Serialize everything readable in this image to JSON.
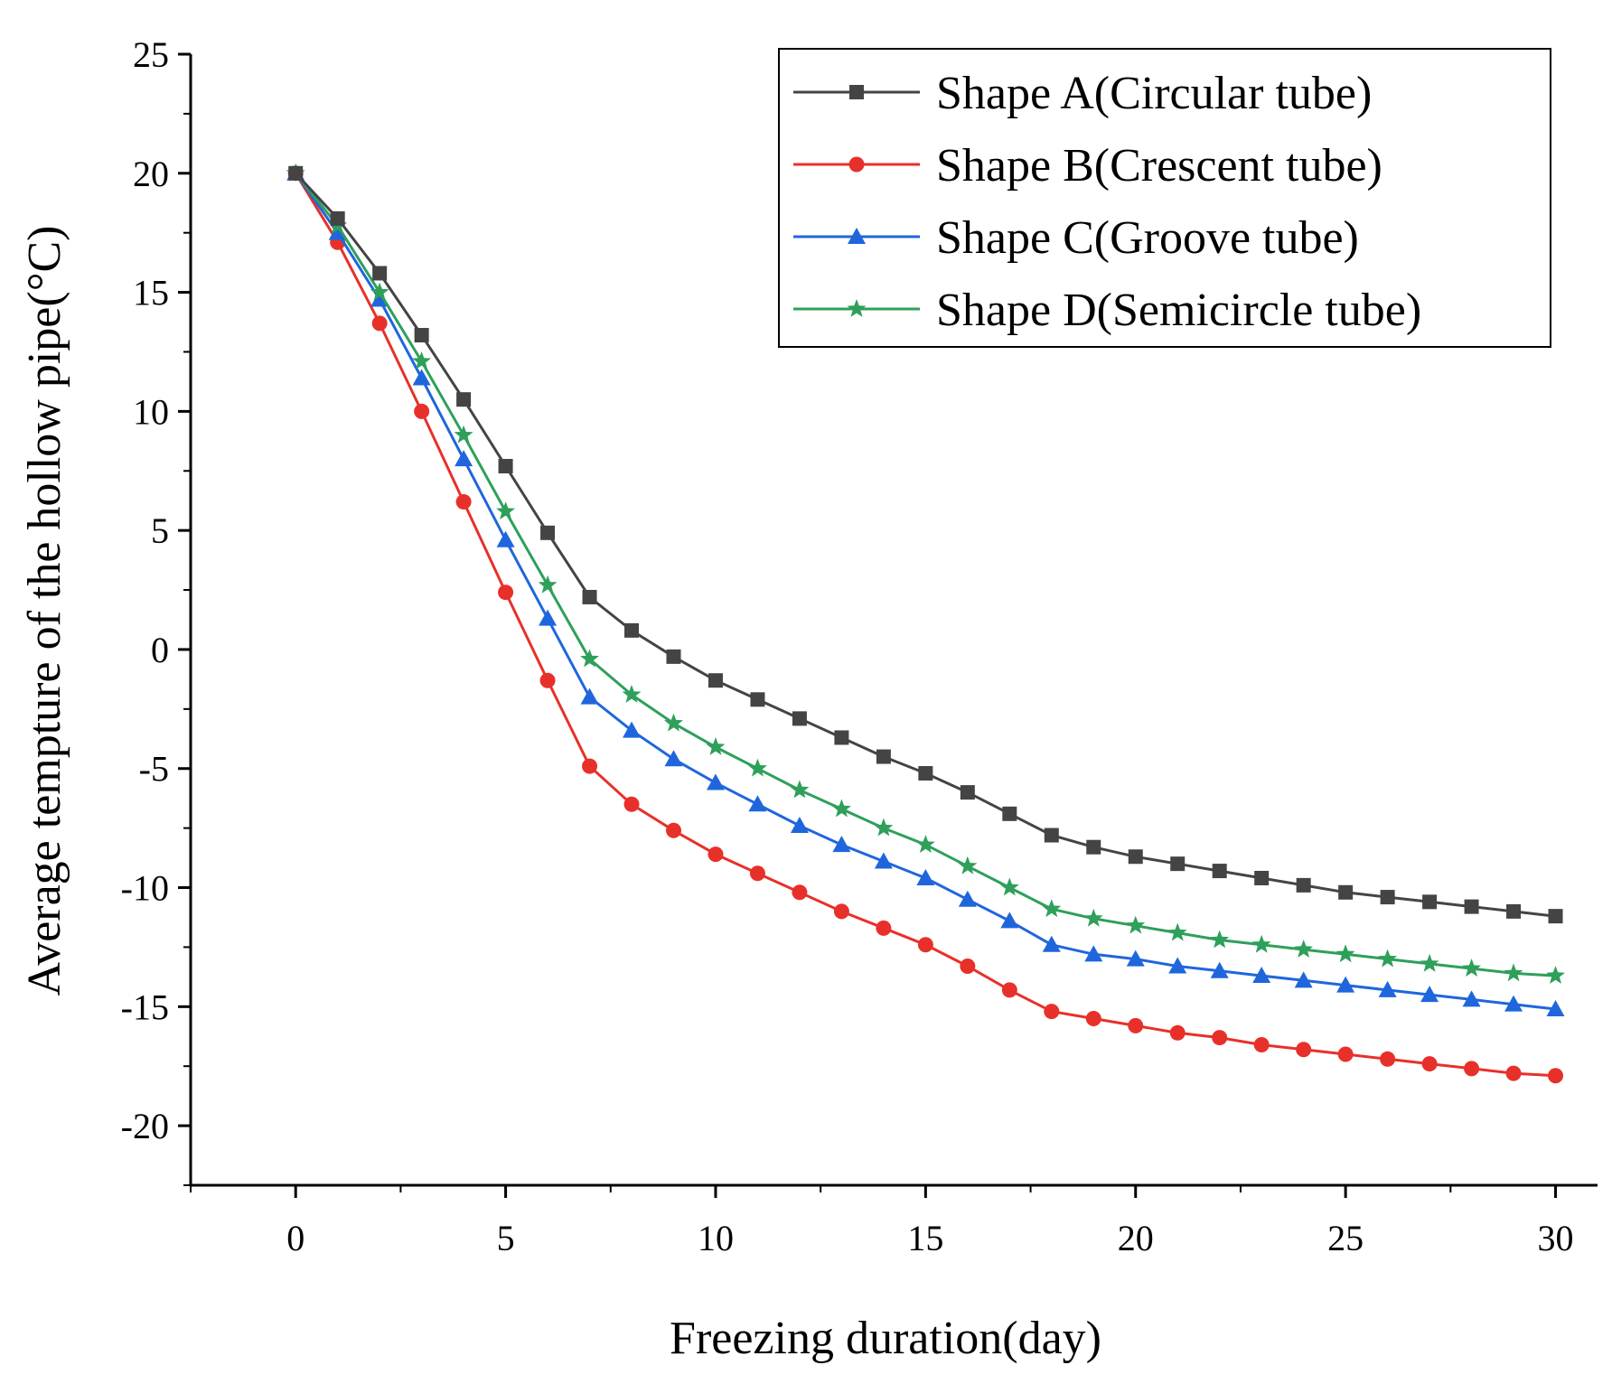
{
  "chart_data": {
    "type": "line",
    "title": "",
    "xlabel": "Freezing duration(day)",
    "ylabel": "Average tempture of the hollow pipe(°C)",
    "xlim": [
      -2.5,
      31
    ],
    "ylim": [
      -22.5,
      25
    ],
    "xticks": [
      0,
      5,
      10,
      15,
      20,
      25,
      30
    ],
    "yticks": [
      -20,
      -15,
      -10,
      -5,
      0,
      5,
      10,
      15,
      20,
      25
    ],
    "grid": false,
    "legend_position": "top-right",
    "x": [
      0,
      1,
      2,
      3,
      4,
      5,
      6,
      7,
      8,
      9,
      10,
      11,
      12,
      13,
      14,
      15,
      16,
      17,
      18,
      19,
      20,
      21,
      22,
      23,
      24,
      25,
      26,
      27,
      28,
      29,
      30
    ],
    "series": [
      {
        "name": "Shape A(Circular tube)",
        "color": "#444444",
        "marker": "square",
        "values": [
          20,
          18.1,
          15.8,
          13.2,
          10.5,
          7.7,
          4.9,
          2.2,
          0.8,
          -0.3,
          -1.3,
          -2.1,
          -2.9,
          -3.7,
          -4.5,
          -5.2,
          -6.0,
          -6.9,
          -7.8,
          -8.3,
          -8.7,
          -9.0,
          -9.3,
          -9.6,
          -9.9,
          -10.2,
          -10.4,
          -10.6,
          -10.8,
          -11.0,
          -11.2
        ]
      },
      {
        "name": "Shape B(Crescent tube)",
        "color": "#e8302a",
        "marker": "circle",
        "values": [
          20,
          17.1,
          13.7,
          10.0,
          6.2,
          2.4,
          -1.3,
          -4.9,
          -6.5,
          -7.6,
          -8.6,
          -9.4,
          -10.2,
          -11.0,
          -11.7,
          -12.4,
          -13.3,
          -14.3,
          -15.2,
          -15.5,
          -15.8,
          -16.1,
          -16.3,
          -16.6,
          -16.8,
          -17.0,
          -17.2,
          -17.4,
          -17.6,
          -17.8,
          -17.9
        ]
      },
      {
        "name": "Shape C(Groove tube)",
        "color": "#1f66dd",
        "marker": "triangle",
        "values": [
          20,
          17.5,
          14.7,
          11.4,
          8.0,
          4.6,
          1.3,
          -2.0,
          -3.4,
          -4.6,
          -5.6,
          -6.5,
          -7.4,
          -8.2,
          -8.9,
          -9.6,
          -10.5,
          -11.4,
          -12.4,
          -12.8,
          -13.0,
          -13.3,
          -13.5,
          -13.7,
          -13.9,
          -14.1,
          -14.3,
          -14.5,
          -14.7,
          -14.9,
          -15.1
        ]
      },
      {
        "name": "Shape D(Semicircle tube)",
        "color": "#2ea05a",
        "marker": "star",
        "values": [
          20,
          17.8,
          15.0,
          12.1,
          9.0,
          5.8,
          2.7,
          -0.4,
          -1.9,
          -3.1,
          -4.1,
          -5.0,
          -5.9,
          -6.7,
          -7.5,
          -8.2,
          -9.1,
          -10.0,
          -10.9,
          -11.3,
          -11.6,
          -11.9,
          -12.2,
          -12.4,
          -12.6,
          -12.8,
          -13.0,
          -13.2,
          -13.4,
          -13.6,
          -13.7
        ]
      }
    ]
  }
}
